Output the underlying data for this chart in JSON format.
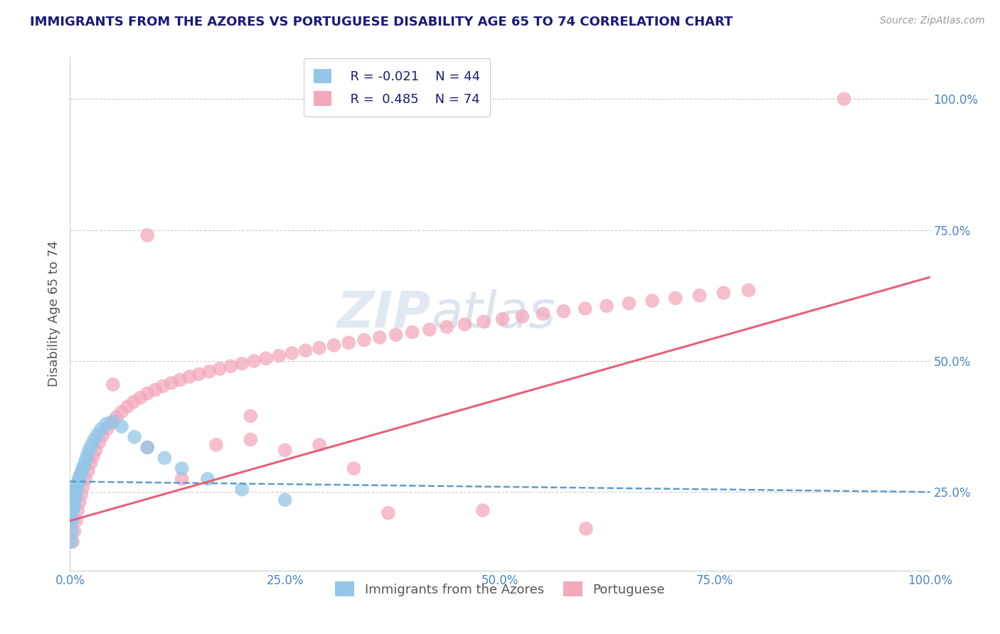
{
  "title": "IMMIGRANTS FROM THE AZORES VS PORTUGUESE DISABILITY AGE 65 TO 74 CORRELATION CHART",
  "source_text": "Source: ZipAtlas.com",
  "ylabel": "Disability Age 65 to 74",
  "watermark_zip": "ZIP",
  "watermark_atlas": "atlas",
  "legend_r1": "R = -0.021",
  "legend_n1": "N = 44",
  "legend_r2": "R =  0.485",
  "legend_n2": "N = 74",
  "series1_label": "Immigrants from the Azores",
  "series2_label": "Portuguese",
  "color_blue": "#93c6e8",
  "color_pink": "#f4a8bc",
  "color_blue_line": "#5b9dcc",
  "color_pink_line": "#e8607a",
  "title_color": "#1a1a7a",
  "legend_text_color": "#1a1a7a",
  "axis_label_color": "#4a86c8",
  "grid_color": "#cccccc",
  "background_color": "#ffffff",
  "xlim": [
    0.0,
    1.0
  ],
  "ylim": [
    0.1,
    1.08
  ],
  "xticks": [
    0.0,
    0.25,
    0.5,
    0.75,
    1.0
  ],
  "xtick_labels": [
    "0.0%",
    "25.0%",
    "50.0%",
    "75.0%",
    "100.0%"
  ],
  "yticks": [
    0.25,
    0.5,
    0.75,
    1.0
  ],
  "ytick_labels": [
    "25.0%",
    "50.0%",
    "75.0%",
    "100.0%"
  ],
  "series1_x": [
    0.001,
    0.002,
    0.002,
    0.003,
    0.003,
    0.004,
    0.004,
    0.005,
    0.005,
    0.006,
    0.006,
    0.007,
    0.007,
    0.008,
    0.008,
    0.009,
    0.009,
    0.01,
    0.01,
    0.011,
    0.011,
    0.012,
    0.012,
    0.013,
    0.014,
    0.015,
    0.016,
    0.018,
    0.02,
    0.022,
    0.025,
    0.028,
    0.032,
    0.036,
    0.042,
    0.05,
    0.06,
    0.075,
    0.09,
    0.11,
    0.13,
    0.16,
    0.2,
    0.25
  ],
  "series1_y": [
    0.155,
    0.175,
    0.195,
    0.2,
    0.215,
    0.22,
    0.225,
    0.23,
    0.235,
    0.24,
    0.245,
    0.248,
    0.255,
    0.258,
    0.262,
    0.265,
    0.268,
    0.27,
    0.272,
    0.275,
    0.278,
    0.28,
    0.282,
    0.285,
    0.29,
    0.295,
    0.3,
    0.31,
    0.32,
    0.33,
    0.34,
    0.35,
    0.36,
    0.37,
    0.38,
    0.385,
    0.375,
    0.355,
    0.335,
    0.315,
    0.295,
    0.275,
    0.255,
    0.235
  ],
  "series2_x": [
    0.003,
    0.005,
    0.007,
    0.009,
    0.011,
    0.013,
    0.015,
    0.018,
    0.021,
    0.024,
    0.027,
    0.03,
    0.034,
    0.038,
    0.043,
    0.048,
    0.054,
    0.06,
    0.067,
    0.074,
    0.082,
    0.09,
    0.099,
    0.108,
    0.118,
    0.128,
    0.139,
    0.15,
    0.162,
    0.174,
    0.187,
    0.2,
    0.214,
    0.228,
    0.243,
    0.258,
    0.274,
    0.29,
    0.307,
    0.324,
    0.342,
    0.36,
    0.379,
    0.398,
    0.418,
    0.438,
    0.459,
    0.481,
    0.503,
    0.526,
    0.55,
    0.574,
    0.599,
    0.624,
    0.65,
    0.677,
    0.704,
    0.732,
    0.76,
    0.789,
    0.05,
    0.09,
    0.13,
    0.17,
    0.21,
    0.25,
    0.29,
    0.33,
    0.09,
    0.21,
    0.37,
    0.48,
    0.6,
    0.9
  ],
  "series2_y": [
    0.155,
    0.175,
    0.195,
    0.215,
    0.23,
    0.245,
    0.26,
    0.275,
    0.29,
    0.305,
    0.318,
    0.33,
    0.345,
    0.358,
    0.37,
    0.382,
    0.393,
    0.403,
    0.413,
    0.422,
    0.43,
    0.438,
    0.445,
    0.452,
    0.458,
    0.464,
    0.47,
    0.475,
    0.48,
    0.485,
    0.49,
    0.495,
    0.5,
    0.505,
    0.51,
    0.515,
    0.52,
    0.525,
    0.53,
    0.535,
    0.54,
    0.545,
    0.55,
    0.555,
    0.56,
    0.565,
    0.57,
    0.575,
    0.58,
    0.585,
    0.59,
    0.595,
    0.6,
    0.605,
    0.61,
    0.615,
    0.62,
    0.625,
    0.63,
    0.635,
    0.455,
    0.335,
    0.275,
    0.34,
    0.395,
    0.33,
    0.34,
    0.295,
    0.74,
    0.35,
    0.21,
    0.215,
    0.18,
    1.0
  ],
  "trend1_x0": 0.0,
  "trend1_x1": 1.0,
  "trend1_y0": 0.27,
  "trend1_y1": 0.25,
  "trend2_x0": 0.0,
  "trend2_x1": 1.0,
  "trend2_y0": 0.195,
  "trend2_y1": 0.66
}
